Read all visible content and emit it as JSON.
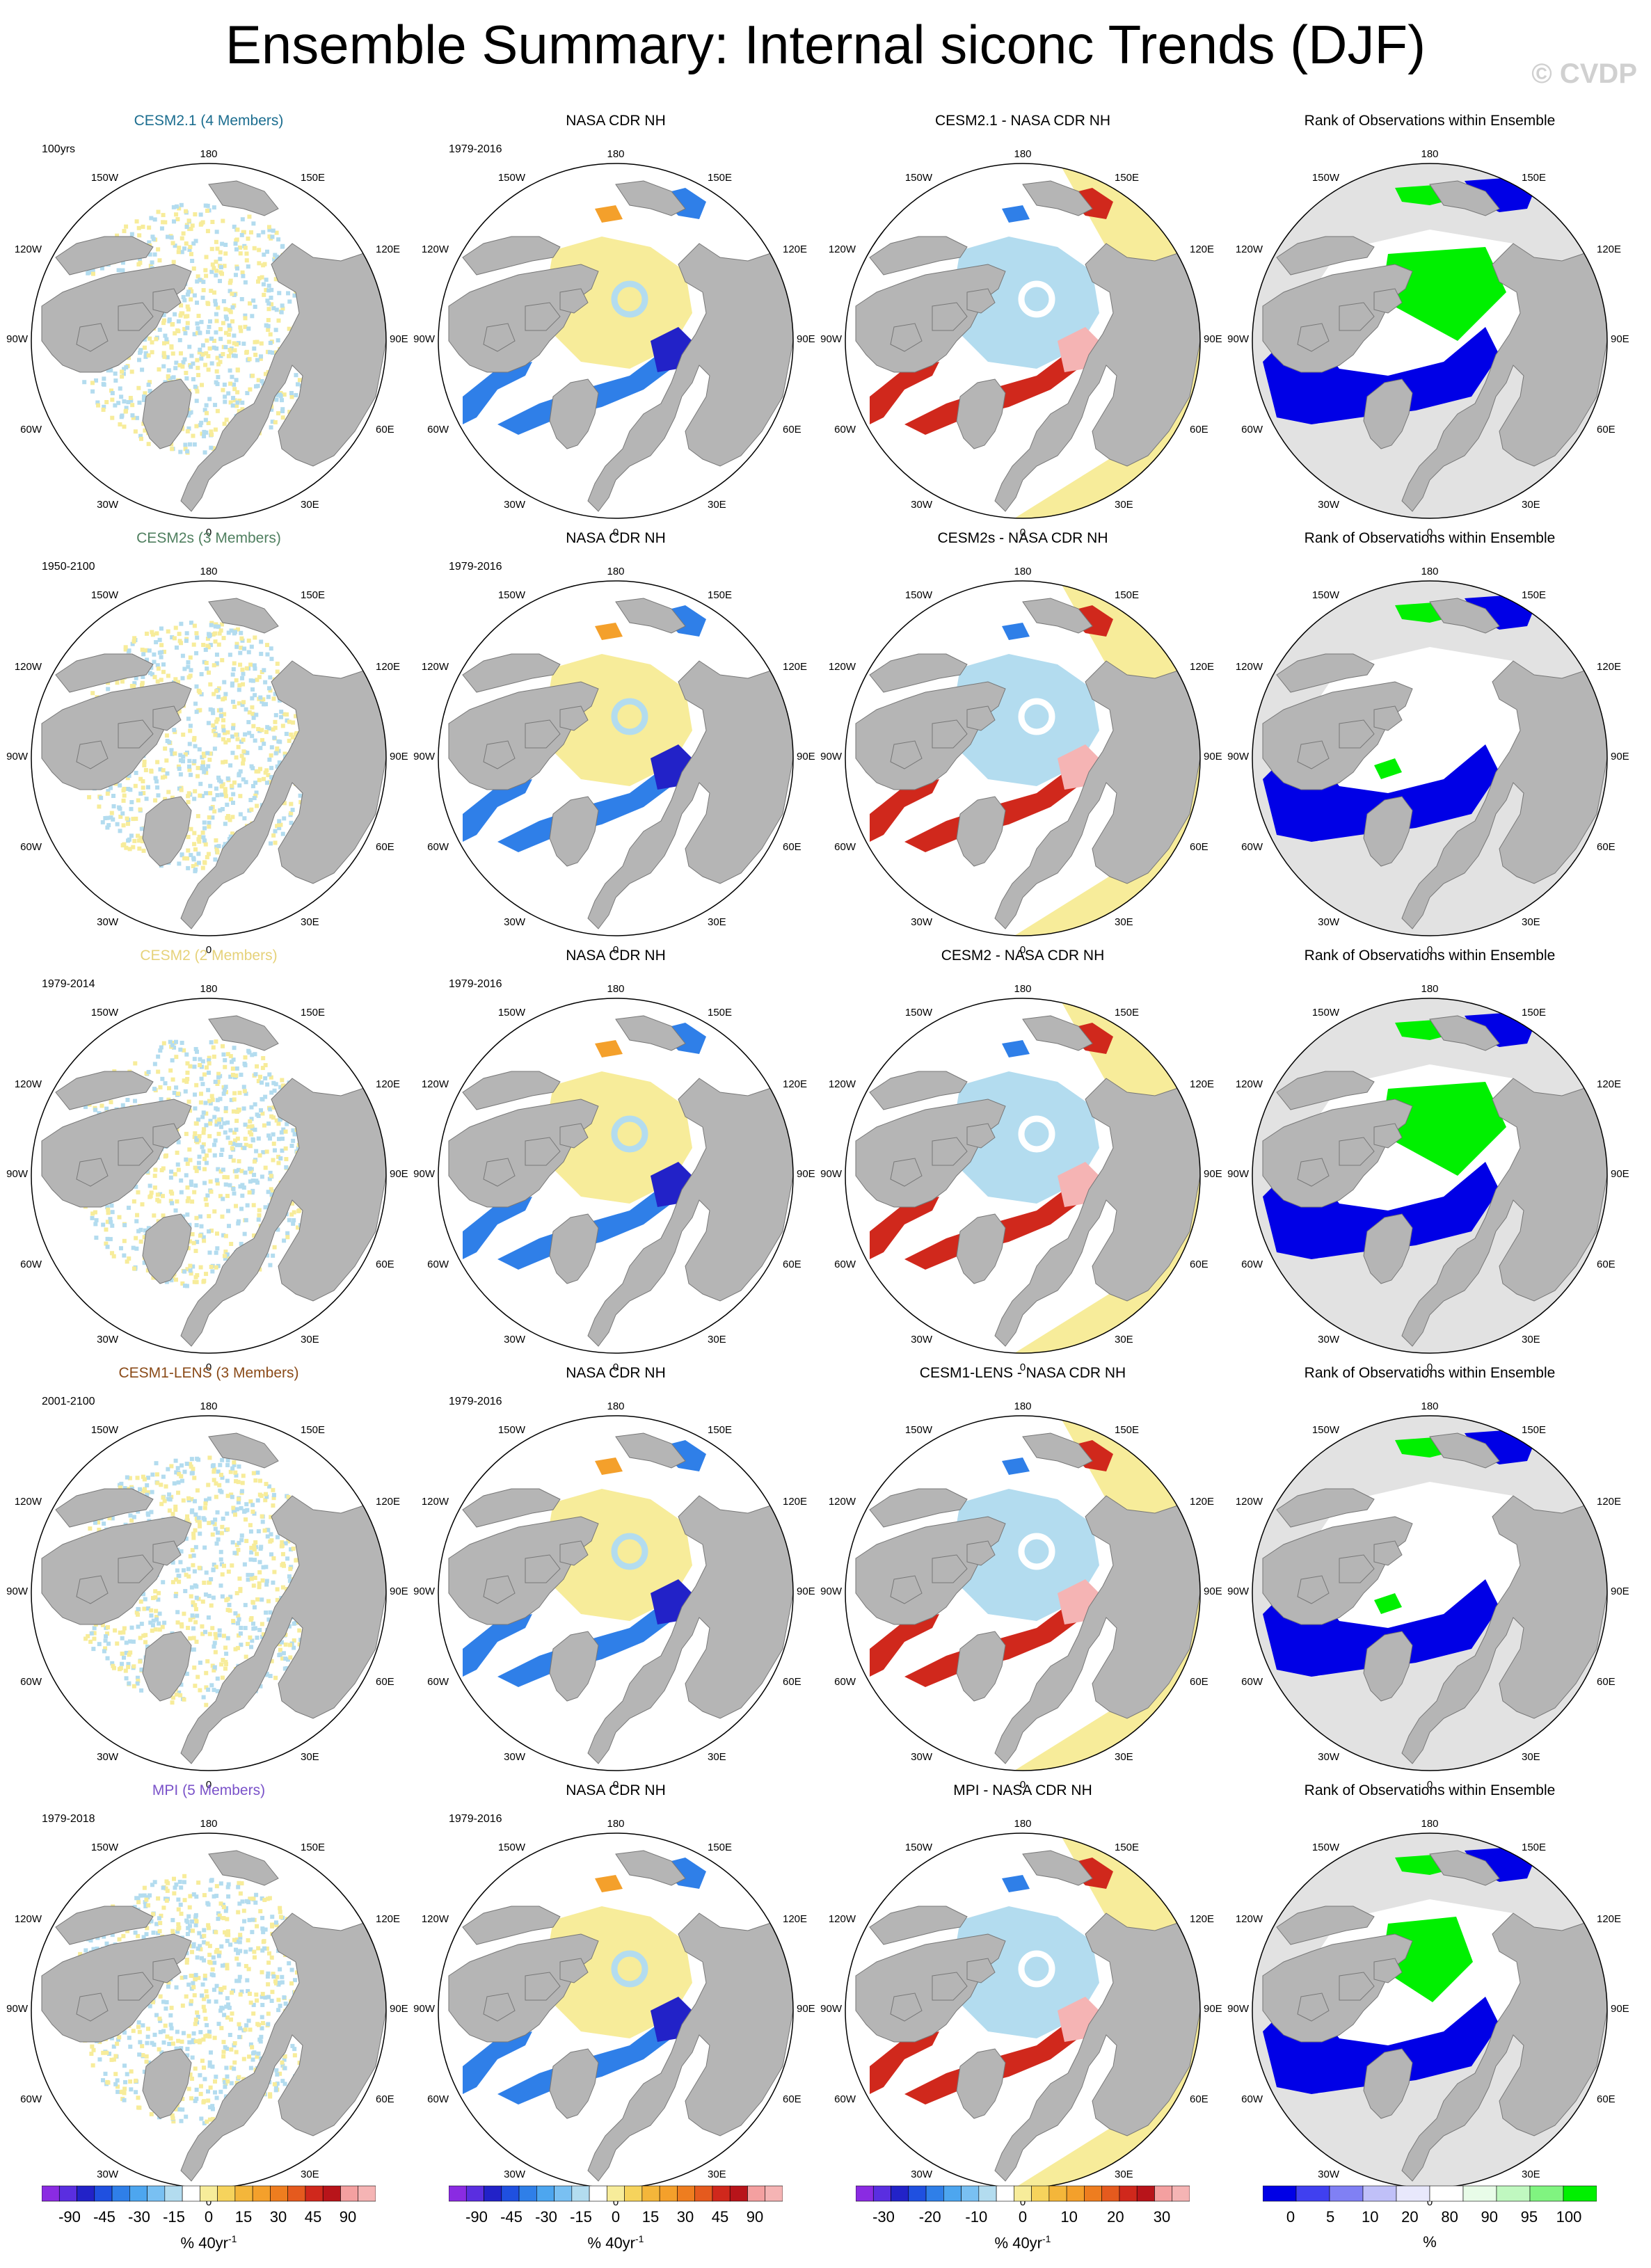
{
  "title": "Ensemble Summary: Internal siconc Trends (DJF)",
  "watermark": "© CVDP",
  "map_labels": {
    "top": "180",
    "bottom": "0",
    "ul": "150W",
    "ur": "150E",
    "l1": "120W",
    "r1": "120E",
    "l2": "90W",
    "r2": "90E",
    "l3": "60W",
    "r3": "60E",
    "ll": "30W",
    "lr": "30E"
  },
  "colors": {
    "land": "#b5b5b5",
    "ocean": "#ffffff",
    "rank_land": "#e2e2e2",
    "yellow": "#f7ec9a",
    "lightblue": "#b3dcef",
    "blue": "#2f7fe8",
    "darkblue": "#2222c8",
    "red": "#d0281c",
    "orange": "#f4a02b",
    "pink": "#f5b4b4",
    "rank_blue": "#0000e6",
    "rank_green": "#00f000"
  },
  "rows": [
    {
      "model": {
        "title": "CESM2.1 (4 Members)",
        "color": "#1b6d8f",
        "period": "100yrs"
      },
      "obs": {
        "title": "NASA CDR NH",
        "period": "1979-2016"
      },
      "diff": {
        "title": "CESM2.1 - NASA CDR NH"
      },
      "rank": {
        "title": "Rank of Observations within Ensemble",
        "green": "large"
      }
    },
    {
      "model": {
        "title": "CESM2s (3 Members)",
        "color": "#4f7f5f",
        "period": "1950-2100"
      },
      "obs": {
        "title": "NASA CDR NH",
        "period": "1979-2016"
      },
      "diff": {
        "title": "CESM2s - NASA CDR NH"
      },
      "rank": {
        "title": "Rank of Observations within Ensemble",
        "green": "small"
      }
    },
    {
      "model": {
        "title": "CESM2 (2 Members)",
        "color": "#e6d27a",
        "period": "1979-2014"
      },
      "obs": {
        "title": "NASA CDR NH",
        "period": "1979-2016"
      },
      "diff": {
        "title": "CESM2 - NASA CDR NH"
      },
      "rank": {
        "title": "Rank of Observations within Ensemble",
        "green": "large"
      }
    },
    {
      "model": {
        "title": "CESM1-LENS (3 Members)",
        "color": "#8a4a18",
        "period": "2001-2100"
      },
      "obs": {
        "title": "NASA CDR NH",
        "period": "1979-2016"
      },
      "diff": {
        "title": "CESM1-LENS - NASA CDR NH"
      },
      "rank": {
        "title": "Rank of Observations within Ensemble",
        "green": "small"
      }
    },
    {
      "model": {
        "title": "MPI (5 Members)",
        "color": "#7a52c9",
        "period": "1979-2018"
      },
      "obs": {
        "title": "NASA CDR NH",
        "period": "1979-2016"
      },
      "diff": {
        "title": "MPI - NASA CDR NH"
      },
      "rank": {
        "title": "Rank of Observations within Ensemble",
        "green": "medium"
      }
    }
  ],
  "colorbars": [
    {
      "colors": [
        "#8a2be2",
        "#5a2ee0",
        "#2222c8",
        "#1f50e0",
        "#2f7fe8",
        "#4da6ef",
        "#79c0f2",
        "#b3dcef",
        "#ffffff",
        "#f7ec9a",
        "#f6d35c",
        "#f4b63a",
        "#f4a02b",
        "#ee7d1f",
        "#e55a1e",
        "#d0281c",
        "#b8141a",
        "#f4a0a0",
        "#f5b4b4"
      ],
      "labels": [
        "-90",
        "-45",
        "-30",
        "-15",
        "0",
        "15",
        "30",
        "45",
        "90"
      ],
      "unit": "% 40yr",
      "unit_sup": "-1"
    },
    {
      "colors": [
        "#8a2be2",
        "#5a2ee0",
        "#2222c8",
        "#1f50e0",
        "#2f7fe8",
        "#4da6ef",
        "#79c0f2",
        "#b3dcef",
        "#ffffff",
        "#f7ec9a",
        "#f6d35c",
        "#f4b63a",
        "#f4a02b",
        "#ee7d1f",
        "#e55a1e",
        "#d0281c",
        "#b8141a",
        "#f4a0a0",
        "#f5b4b4"
      ],
      "labels": [
        "-90",
        "-45",
        "-30",
        "-15",
        "0",
        "15",
        "30",
        "45",
        "90"
      ],
      "unit": "% 40yr",
      "unit_sup": "-1"
    },
    {
      "colors": [
        "#8a2be2",
        "#5a2ee0",
        "#2222c8",
        "#1f50e0",
        "#2f7fe8",
        "#4da6ef",
        "#79c0f2",
        "#b3dcef",
        "#ffffff",
        "#f7ec9a",
        "#f6d35c",
        "#f4b63a",
        "#f4a02b",
        "#ee7d1f",
        "#e55a1e",
        "#d0281c",
        "#b8141a",
        "#f4a0a0",
        "#f5b4b4"
      ],
      "labels": [
        "-30",
        "-20",
        "-10",
        "0",
        "10",
        "20",
        "30"
      ],
      "unit": "% 40yr",
      "unit_sup": "-1"
    },
    {
      "colors": [
        "#0000e6",
        "#4040f0",
        "#8080f4",
        "#c0c0f8",
        "#e8e8fc",
        "#ffffff",
        "#e8fce8",
        "#c0f8c0",
        "#80f480",
        "#00f000"
      ],
      "labels": [
        "0",
        "5",
        "10",
        "20",
        "80",
        "90",
        "95",
        "100"
      ],
      "unit": "%",
      "unit_sup": ""
    }
  ]
}
